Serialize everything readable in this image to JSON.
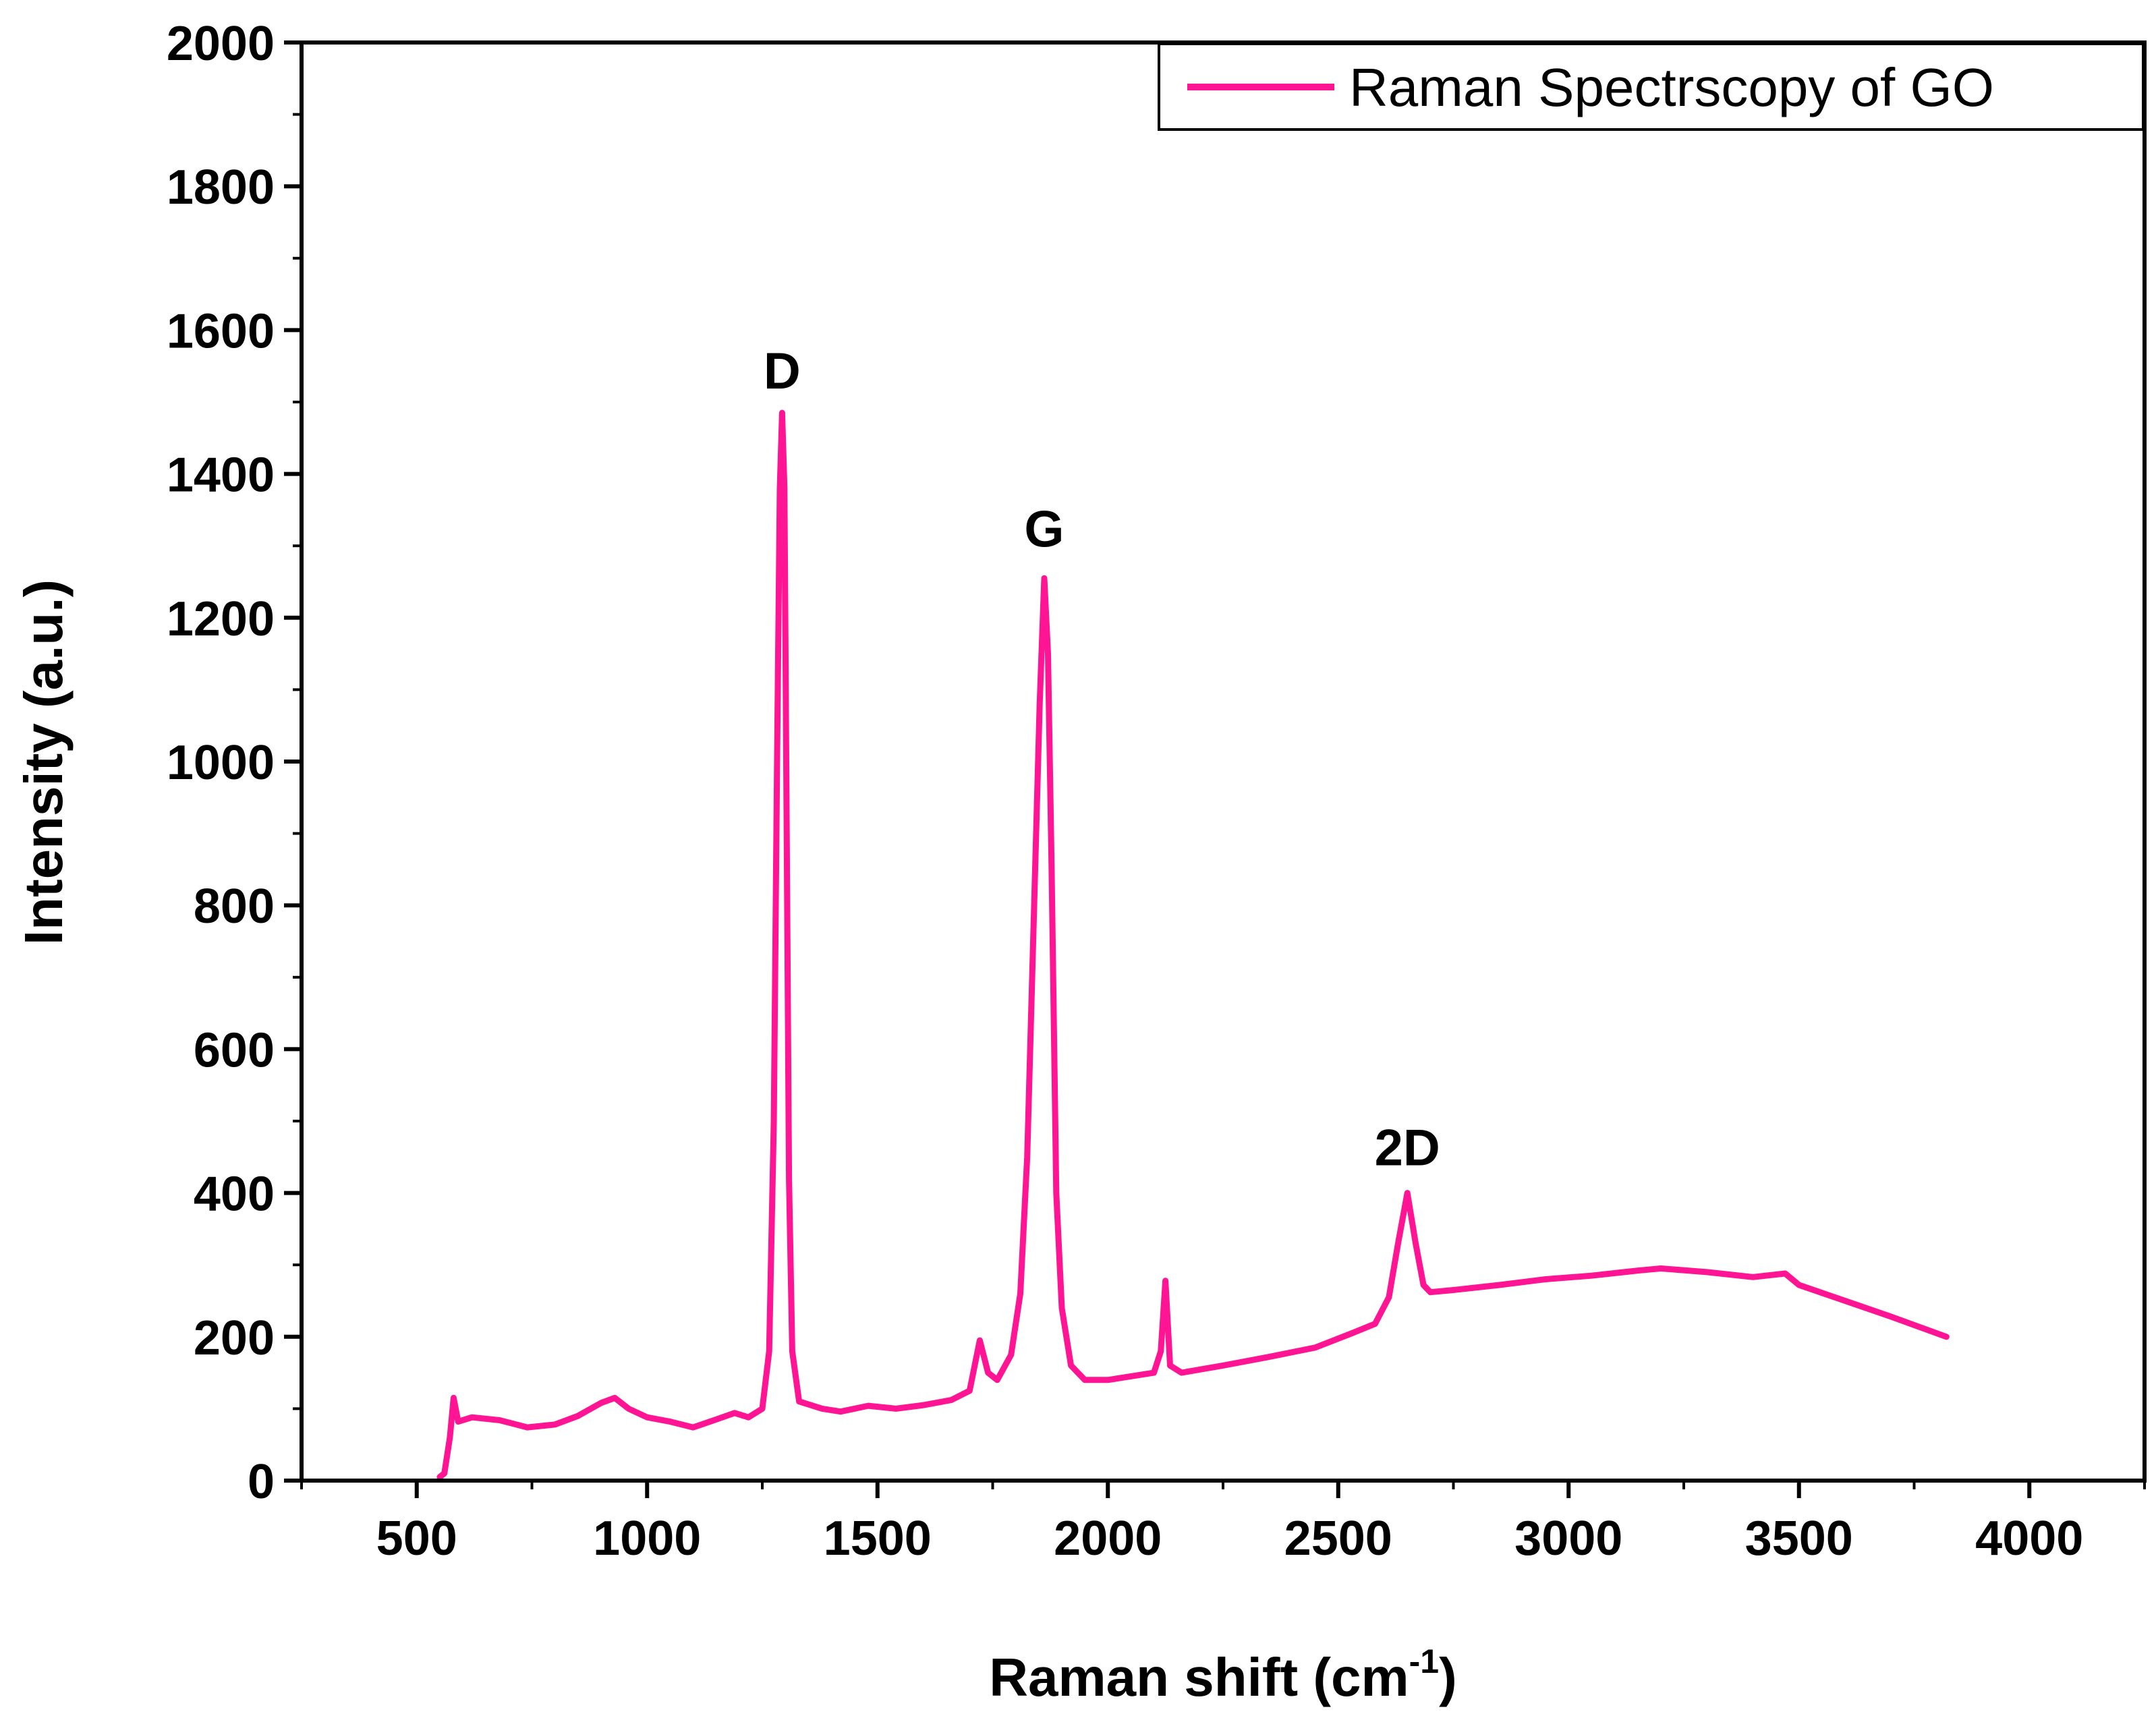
{
  "chart_data": {
    "type": "line",
    "title": "",
    "xlabel": "Raman shift (cm",
    "xlabel_sup": "-1",
    "xlabel_end": ")",
    "ylabel": "Intensity (a.u.)",
    "xlim": [
      250,
      4250
    ],
    "ylim": [
      0,
      2000
    ],
    "x_ticks": [
      500,
      1000,
      1500,
      2000,
      2500,
      3000,
      3500,
      4000
    ],
    "y_ticks": [
      0,
      200,
      400,
      600,
      800,
      1000,
      1200,
      1400,
      1600,
      1800,
      2000
    ],
    "grid": false,
    "legend_position": "top-right",
    "series": [
      {
        "name": "Raman Spectrscopy of GO",
        "color": "#ff1493",
        "points": [
          [
            550,
            5
          ],
          [
            560,
            10
          ],
          [
            572,
            60
          ],
          [
            580,
            115
          ],
          [
            590,
            82
          ],
          [
            620,
            88
          ],
          [
            680,
            84
          ],
          [
            740,
            74
          ],
          [
            800,
            78
          ],
          [
            850,
            90
          ],
          [
            900,
            108
          ],
          [
            930,
            115
          ],
          [
            960,
            100
          ],
          [
            1000,
            88
          ],
          [
            1050,
            82
          ],
          [
            1100,
            74
          ],
          [
            1150,
            85
          ],
          [
            1190,
            94
          ],
          [
            1220,
            88
          ],
          [
            1250,
            100
          ],
          [
            1265,
            180
          ],
          [
            1275,
            500
          ],
          [
            1282,
            1000
          ],
          [
            1288,
            1380
          ],
          [
            1293,
            1485
          ],
          [
            1298,
            1380
          ],
          [
            1303,
            900
          ],
          [
            1308,
            420
          ],
          [
            1315,
            180
          ],
          [
            1330,
            110
          ],
          [
            1380,
            100
          ],
          [
            1420,
            96
          ],
          [
            1480,
            104
          ],
          [
            1540,
            100
          ],
          [
            1600,
            105
          ],
          [
            1660,
            112
          ],
          [
            1700,
            125
          ],
          [
            1722,
            195
          ],
          [
            1740,
            150
          ],
          [
            1760,
            140
          ],
          [
            1790,
            175
          ],
          [
            1810,
            260
          ],
          [
            1825,
            450
          ],
          [
            1840,
            800
          ],
          [
            1852,
            1080
          ],
          [
            1862,
            1255
          ],
          [
            1870,
            1150
          ],
          [
            1878,
            850
          ],
          [
            1888,
            400
          ],
          [
            1900,
            240
          ],
          [
            1920,
            160
          ],
          [
            1950,
            140
          ],
          [
            2000,
            140
          ],
          [
            2050,
            145
          ],
          [
            2100,
            150
          ],
          [
            2115,
            180
          ],
          [
            2125,
            278
          ],
          [
            2135,
            160
          ],
          [
            2160,
            150
          ],
          [
            2250,
            160
          ],
          [
            2350,
            172
          ],
          [
            2450,
            185
          ],
          [
            2530,
            205
          ],
          [
            2580,
            218
          ],
          [
            2610,
            255
          ],
          [
            2630,
            330
          ],
          [
            2650,
            400
          ],
          [
            2668,
            330
          ],
          [
            2685,
            272
          ],
          [
            2700,
            262
          ],
          [
            2750,
            265
          ],
          [
            2850,
            272
          ],
          [
            2950,
            280
          ],
          [
            3050,
            285
          ],
          [
            3150,
            292
          ],
          [
            3200,
            295
          ],
          [
            3300,
            290
          ],
          [
            3400,
            283
          ],
          [
            3470,
            288
          ],
          [
            3500,
            272
          ],
          [
            3600,
            250
          ],
          [
            3700,
            228
          ],
          [
            3820,
            200
          ]
        ]
      }
    ],
    "annotations": [
      {
        "text": "D",
        "x": 1293,
        "y": 1500
      },
      {
        "text": "G",
        "x": 1862,
        "y": 1280
      },
      {
        "text": "2D",
        "x": 2650,
        "y": 420
      }
    ]
  }
}
